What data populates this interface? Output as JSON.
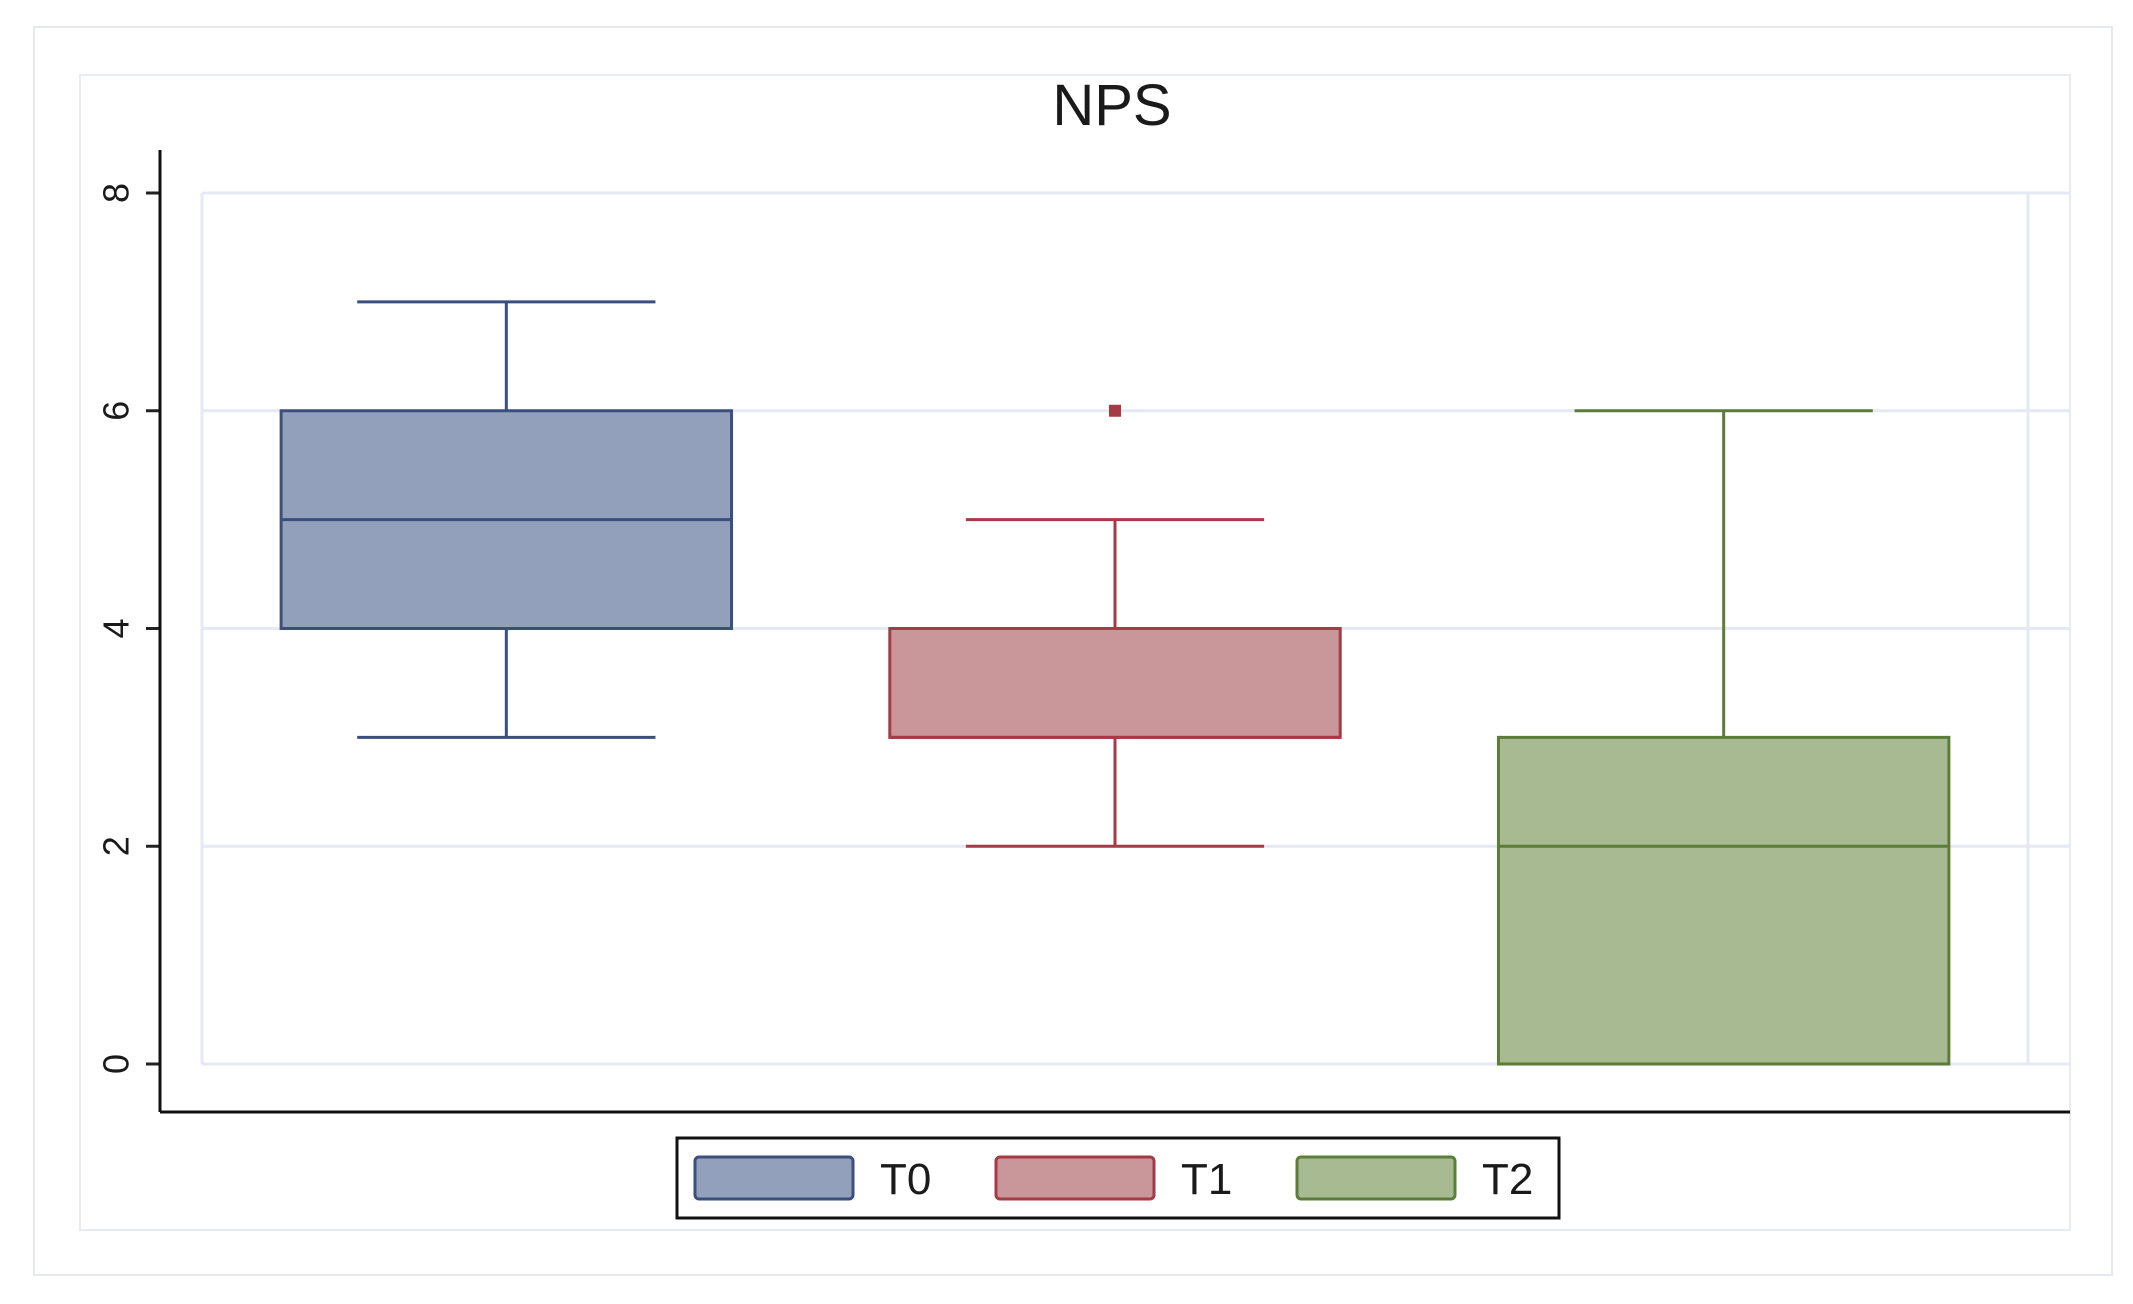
{
  "chart_data": {
    "type": "box",
    "title": "NPS",
    "xlabel": "",
    "ylabel": "",
    "ylim": [
      0,
      8
    ],
    "yticks": [
      0,
      2,
      4,
      6,
      8
    ],
    "grid": true,
    "legend_position": "bottom",
    "series": [
      {
        "name": "T0",
        "color": "#93a0bb",
        "edge_color": "#3a4f7e",
        "whisker_low": 3,
        "q1": 4,
        "median": 5,
        "q3": 6,
        "whisker_high": 7,
        "outliers": []
      },
      {
        "name": "T1",
        "color": "#c9969a",
        "edge_color": "#a43b45",
        "whisker_low": 2,
        "q1": 3,
        "median": 3,
        "q3": 4,
        "whisker_high": 5,
        "outliers": [
          6
        ]
      },
      {
        "name": "T2",
        "color": "#a8ba91",
        "edge_color": "#5c7d3a",
        "whisker_low": 0,
        "q1": 0,
        "median": 2,
        "q3": 3,
        "whisker_high": 6,
        "outliers": []
      }
    ]
  }
}
